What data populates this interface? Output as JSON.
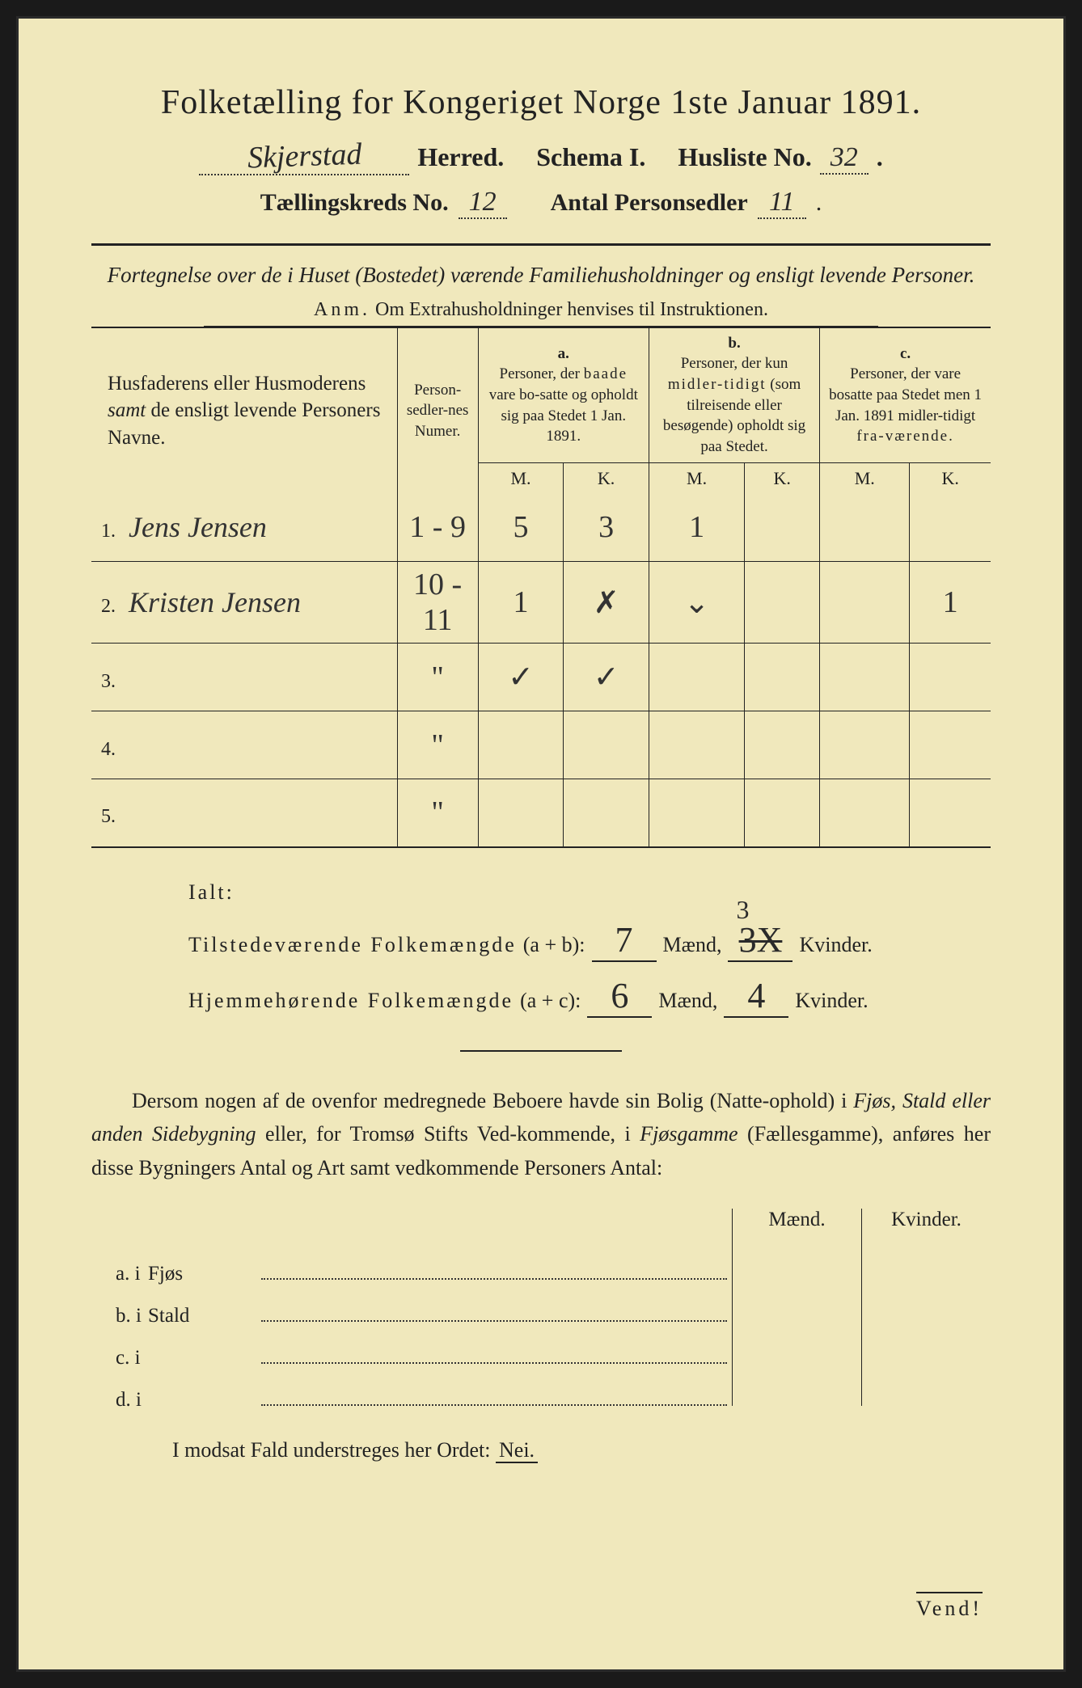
{
  "colors": {
    "paper": "#f0e8bc",
    "ink": "#222222",
    "handwriting": "#2a2a2a",
    "purple_ink": "#4a3a8a",
    "border": "#1a1a1a"
  },
  "header": {
    "title": "Folketælling for Kongeriget Norge 1ste Januar 1891.",
    "herred_hw": "Skjerstad",
    "herred_label": "Herred.",
    "schema_label": "Schema I.",
    "husliste_label": "Husliste No.",
    "husliste_no": "32",
    "kreds_label": "Tællingskreds No.",
    "kreds_no": "12",
    "antal_label": "Antal Personsedler",
    "antal_no": "11"
  },
  "subtitle": "Fortegnelse over de i Huset (Bostedet) værende Familiehusholdninger og ensligt levende Personer.",
  "anm": {
    "label": "Anm.",
    "text": "Om Extrahusholdninger henvises til Instruktionen."
  },
  "table": {
    "col_names": "Husfaderens eller Husmoderens samt de ensligt levende Personers Navne.",
    "col_numer": "Person-sedler-nes Numer.",
    "col_a_letter": "a.",
    "col_a": "Personer, der baade vare bosatte og opholdt sig paa Stedet 1 Jan. 1891.",
    "col_b_letter": "b.",
    "col_b": "Personer, der kun midlertidigt (som tilreisende eller besøgende) opholdt sig paa Stedet.",
    "col_c_letter": "c.",
    "col_c": "Personer, der vare bosatte paa Stedet men 1 Jan. 1891 midlertidigt fraværende.",
    "m": "M.",
    "k": "K.",
    "rows": [
      {
        "n": "1.",
        "name": "Jens Jensen",
        "numer": "1 - 9",
        "a_m": "5",
        "a_k": "3",
        "b_m": "1",
        "b_k": "",
        "c_m": "",
        "c_k": ""
      },
      {
        "n": "2.",
        "name": "Kristen Jensen",
        "numer": "10 - 11",
        "a_m": "1",
        "a_k": "✗",
        "b_m": "⌄",
        "b_k": "",
        "c_m": "",
        "c_k": "1"
      },
      {
        "n": "3.",
        "name": "",
        "numer": "\"",
        "a_m": "✓",
        "a_k": "✓",
        "b_m": "",
        "b_k": "",
        "c_m": "",
        "c_k": ""
      },
      {
        "n": "4.",
        "name": "",
        "numer": "\"",
        "a_m": "",
        "a_k": "",
        "b_m": "",
        "b_k": "",
        "c_m": "",
        "c_k": ""
      },
      {
        "n": "5.",
        "name": "",
        "numer": "\"",
        "a_m": "",
        "a_k": "",
        "b_m": "",
        "b_k": "",
        "c_m": "",
        "c_k": ""
      }
    ]
  },
  "totals": {
    "ialt": "Ialt:",
    "line1_label": "Tilstedeværende Folkemængde",
    "line1_formula": "(a + b):",
    "line2_label": "Hjemmehørende Folkemængde",
    "line2_formula": "(a + c):",
    "maend": "Mænd,",
    "kvinder": "Kvinder.",
    "t_m": "7",
    "t_k_strike": "3X",
    "t_k_above": "3",
    "h_m": "6",
    "h_k": "4"
  },
  "paragraph": "Dersom nogen af de ovenfor medregnede Beboere havde sin Bolig (Natteophold) i Fjøs, Stald eller anden Sidebygning eller, for Tromsø Stifts Vedkommende, i Fjøsgamme (Fællesgamme), anføres her disse Bygningers Antal og Art samt vedkommende Personers Antal:",
  "bottom": {
    "maend": "Mænd.",
    "kvinder": "Kvinder.",
    "rows": [
      {
        "lbl": "a.  i",
        "txt": "Fjøs"
      },
      {
        "lbl": "b.  i",
        "txt": "Stald"
      },
      {
        "lbl": "c.  i",
        "txt": ""
      },
      {
        "lbl": "d.  i",
        "txt": ""
      }
    ]
  },
  "nei_line": {
    "prefix": "I modsat Fald understreges her Ordet:",
    "nei": "Nei."
  },
  "vend": "Vend!"
}
